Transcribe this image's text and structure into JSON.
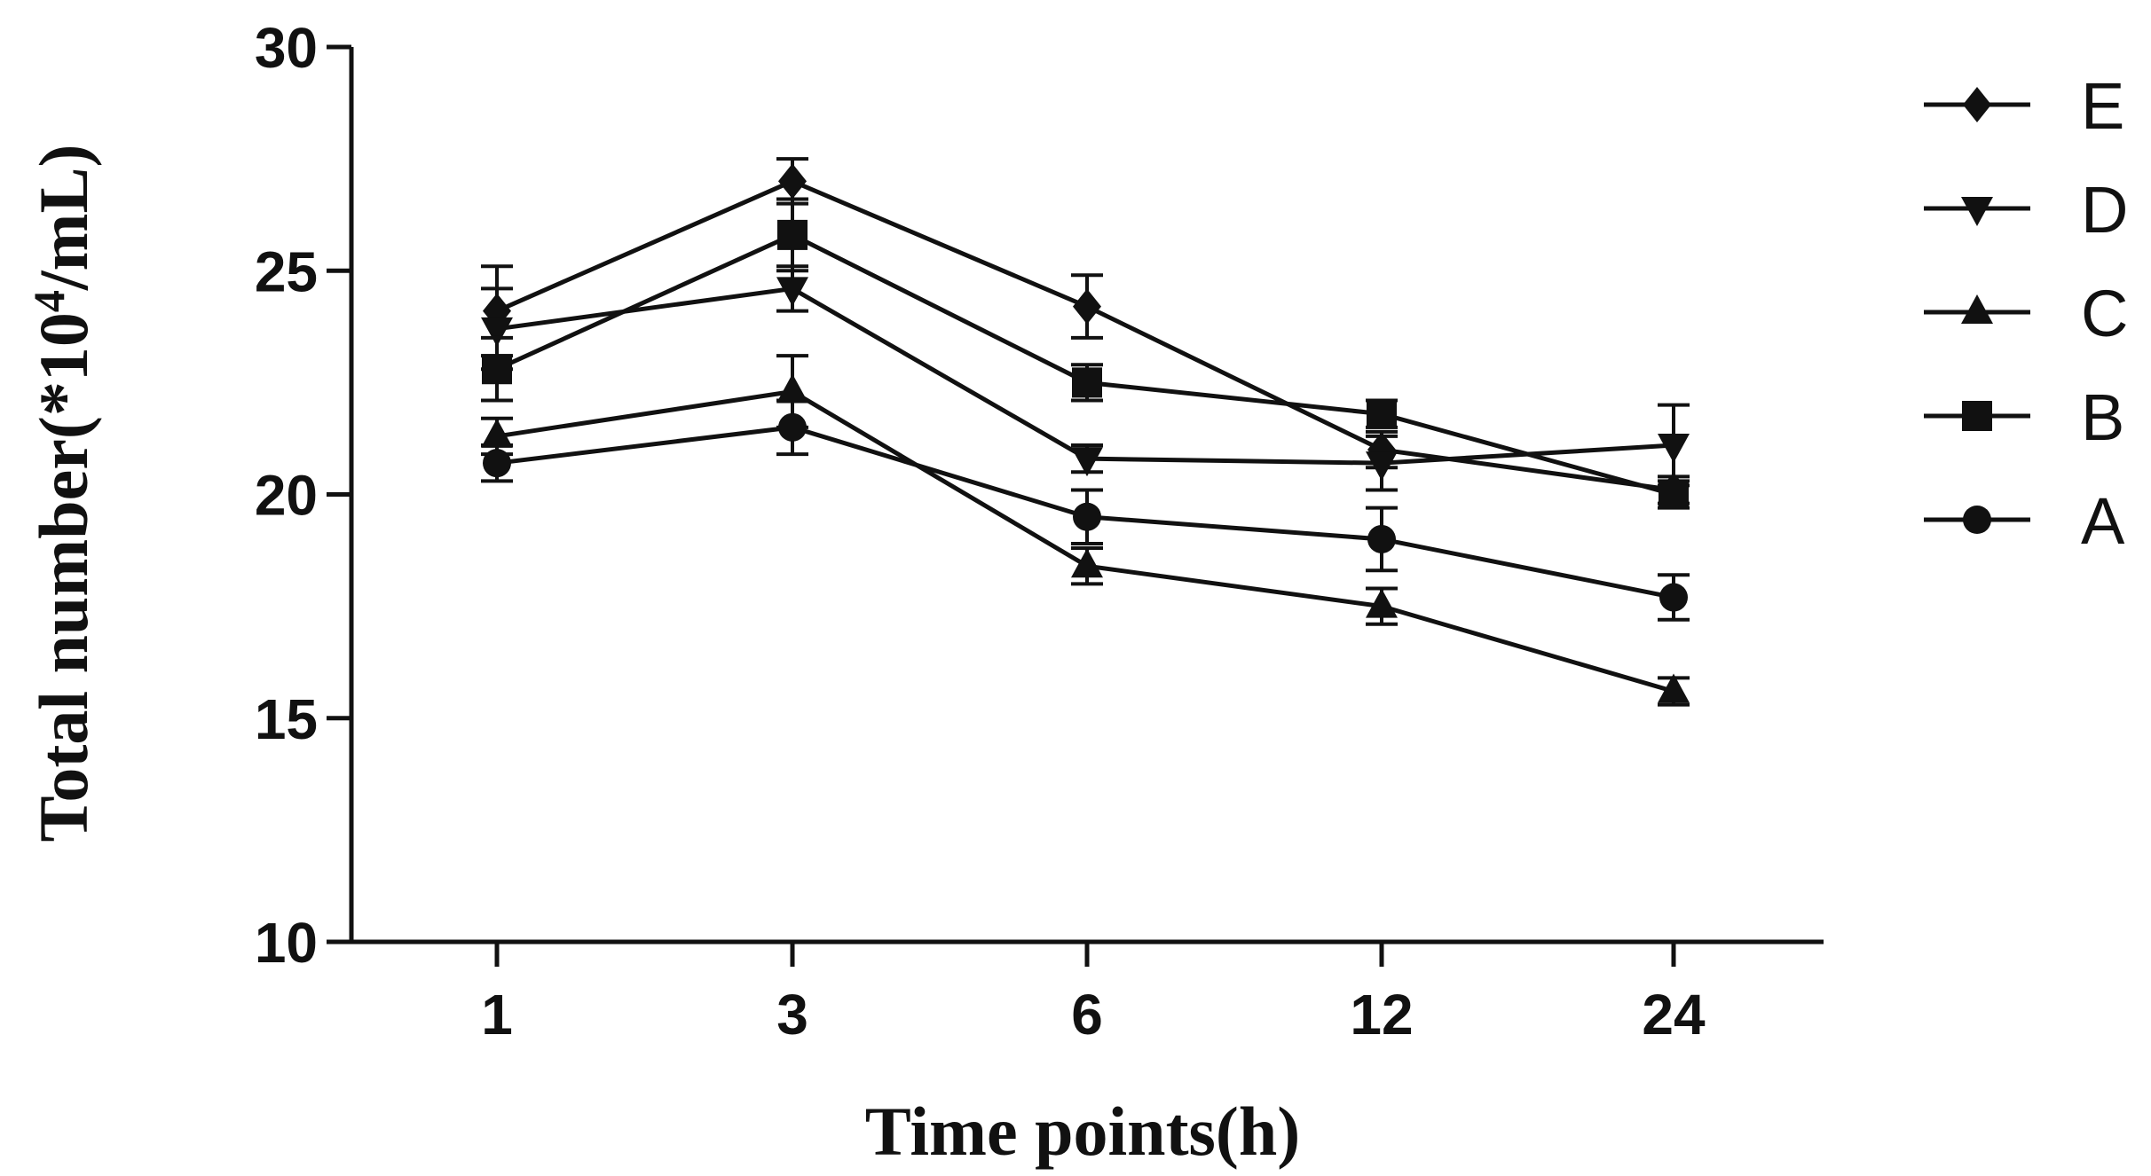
{
  "chart_data": {
    "type": "line",
    "title": "",
    "xlabel": "Time points(h)",
    "ylabel": "Total number(*10",
    "ylabel_sup": "4",
    "ylabel_tail": "/mL)",
    "categories": [
      "1",
      "3",
      "6",
      "12",
      "24"
    ],
    "ylim": [
      10,
      30
    ],
    "yticks": [
      10,
      15,
      20,
      25,
      30
    ],
    "legend_position": "right",
    "series": [
      {
        "name": "E",
        "marker": "diamond",
        "values": [
          24.1,
          27.0,
          24.2,
          21.0,
          20.1
        ],
        "errors": [
          1.0,
          0.5,
          0.7,
          0.4,
          0.3
        ]
      },
      {
        "name": "D",
        "marker": "triangle-down",
        "values": [
          23.7,
          24.6,
          20.8,
          20.7,
          21.1
        ],
        "errors": [
          0.9,
          0.5,
          0.3,
          0.6,
          0.9
        ]
      },
      {
        "name": "C",
        "marker": "triangle-up",
        "values": [
          21.3,
          22.3,
          18.4,
          17.5,
          15.6
        ],
        "errors": [
          0.4,
          0.8,
          0.4,
          0.4,
          0.3
        ]
      },
      {
        "name": "B",
        "marker": "square",
        "values": [
          22.8,
          25.8,
          22.5,
          21.8,
          20.0
        ],
        "errors": [
          0.7,
          0.8,
          0.4,
          0.3,
          0.3
        ]
      },
      {
        "name": "A",
        "marker": "circle",
        "values": [
          20.7,
          21.5,
          19.5,
          19.0,
          17.7
        ],
        "errors": [
          0.4,
          0.6,
          0.6,
          0.7,
          0.5
        ]
      }
    ],
    "colors": {
      "ink": "#111111",
      "background": "#ffffff"
    }
  }
}
